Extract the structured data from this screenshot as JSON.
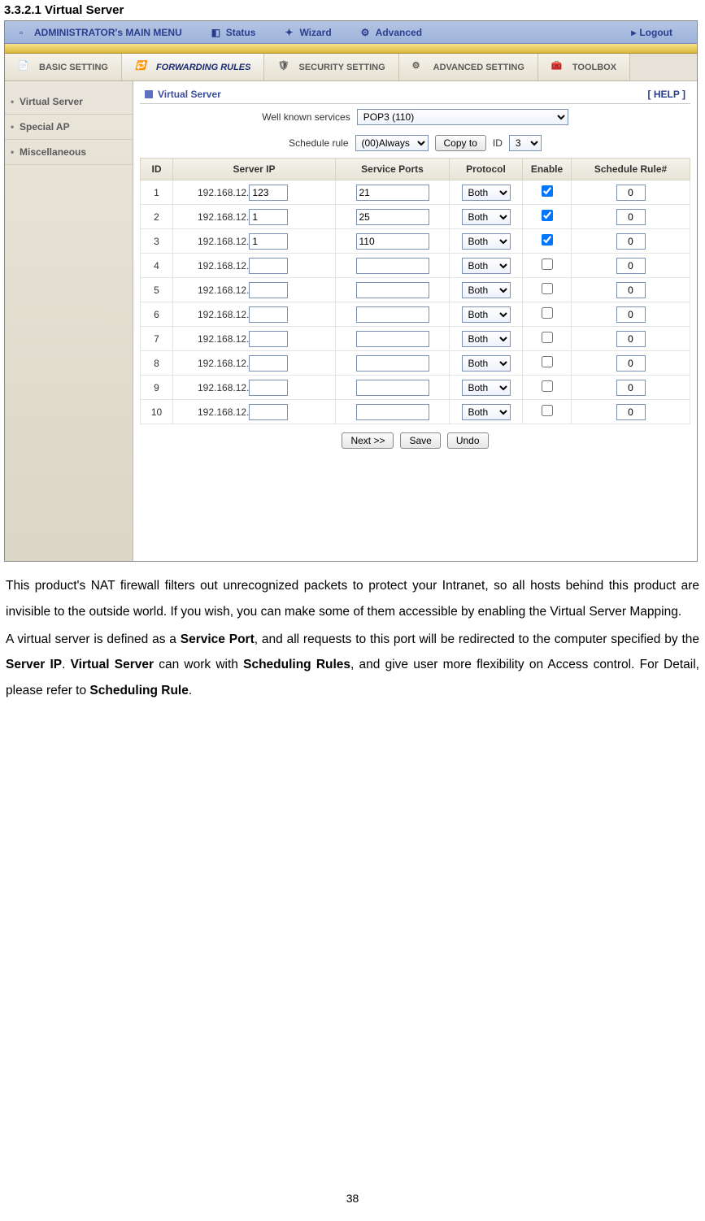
{
  "section_heading": "3.3.2.1 Virtual Server",
  "menubar": {
    "title": "ADMINISTRATOR's MAIN MENU",
    "items": [
      "Status",
      "Wizard",
      "Advanced"
    ],
    "logout": "Logout"
  },
  "tabs": {
    "items": [
      {
        "label": "BASIC SETTING",
        "active": false
      },
      {
        "label": "FORWARDING RULES",
        "active": true
      },
      {
        "label": "SECURITY SETTING",
        "active": false
      },
      {
        "label": "ADVANCED SETTING",
        "active": false
      },
      {
        "label": "TOOLBOX",
        "active": false
      }
    ]
  },
  "sidebar": {
    "items": [
      "Virtual Server",
      "Special AP",
      "Miscellaneous"
    ]
  },
  "panel": {
    "title": "Virtual Server",
    "help": "[ HELP ]",
    "services_label": "Well known services",
    "services_value": "POP3 (110)",
    "schedule_label": "Schedule rule",
    "schedule_value": "(00)Always",
    "copy_label": "Copy to",
    "id_label": "ID",
    "id_value": "3"
  },
  "table": {
    "columns": [
      "ID",
      "Server IP",
      "Service Ports",
      "Protocol",
      "Enable",
      "Schedule Rule#"
    ],
    "ip_prefix": "192.168.12.",
    "protocol_option": "Both",
    "rows": [
      {
        "id": "1",
        "ip": "123",
        "port": "21",
        "enabled": true,
        "rule": "0"
      },
      {
        "id": "2",
        "ip": "1",
        "port": "25",
        "enabled": true,
        "rule": "0"
      },
      {
        "id": "3",
        "ip": "1",
        "port": "110",
        "enabled": true,
        "rule": "0"
      },
      {
        "id": "4",
        "ip": "",
        "port": "",
        "enabled": false,
        "rule": "0"
      },
      {
        "id": "5",
        "ip": "",
        "port": "",
        "enabled": false,
        "rule": "0"
      },
      {
        "id": "6",
        "ip": "",
        "port": "",
        "enabled": false,
        "rule": "0"
      },
      {
        "id": "7",
        "ip": "",
        "port": "",
        "enabled": false,
        "rule": "0"
      },
      {
        "id": "8",
        "ip": "",
        "port": "",
        "enabled": false,
        "rule": "0"
      },
      {
        "id": "9",
        "ip": "",
        "port": "",
        "enabled": false,
        "rule": "0"
      },
      {
        "id": "10",
        "ip": "",
        "port": "",
        "enabled": false,
        "rule": "0"
      }
    ]
  },
  "buttons": {
    "next": "Next >>",
    "save": "Save",
    "undo": "Undo"
  },
  "body": {
    "p1": "This product's NAT firewall filters out unrecognized packets to protect your Intranet, so all hosts behind this product are invisible to the outside world. If you wish, you can make some of them accessible by enabling the Virtual Server Mapping.",
    "p2_a": "A virtual server is defined as a ",
    "p2_b": "Service Port",
    "p2_c": ", and all requests to this port will be redirected to the computer specified by the ",
    "p2_d": "Server IP",
    "p2_e": ".    ",
    "p2_f": "Virtual Server",
    "p2_g": " can work with ",
    "p2_h": "Scheduling Rules",
    "p2_i": ", and give user more flexibility on Access control. For Detail, please refer to ",
    "p2_j": "Scheduling Rule",
    "p2_k": "."
  },
  "page_number": "38",
  "colors": {
    "menubar_bg": "#9db3db",
    "gold": "#d9b73c",
    "tab_bg": "#e7e3d8",
    "link_blue": "#2a3e8f"
  }
}
